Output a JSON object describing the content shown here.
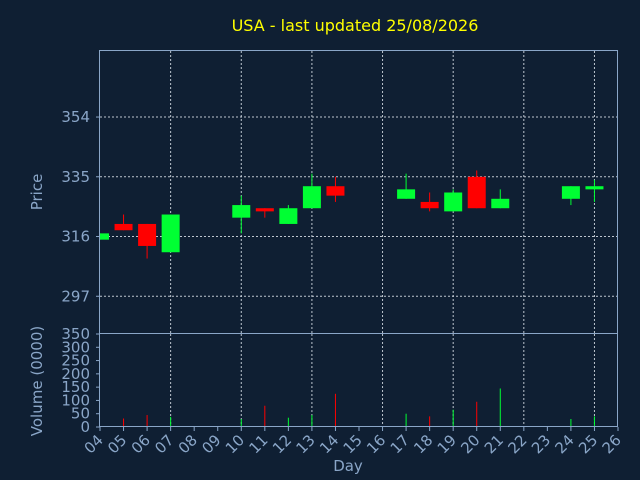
{
  "title": "USA - last updated 25/08/2026",
  "colors": {
    "background": "#0f1f33",
    "axis": "#8aa6c8",
    "title": "#ffff00",
    "up": "#00ff33",
    "down": "#ff0000"
  },
  "chart_data": [
    {
      "type": "candlestick",
      "ylabel": "Price",
      "ylim": [
        285,
        375
      ],
      "yticks": [
        297,
        316,
        335,
        354
      ],
      "grid": true,
      "candles": [
        {
          "day": "04",
          "open": 315,
          "close": 317,
          "high": 317,
          "low": 315
        },
        {
          "day": "05",
          "open": 320,
          "close": 318,
          "high": 323,
          "low": 318
        },
        {
          "day": "06",
          "open": 320,
          "close": 313,
          "high": 320,
          "low": 309
        },
        {
          "day": "07",
          "open": 311,
          "close": 323,
          "high": 323,
          "low": 311
        },
        {
          "day": "10",
          "open": 322,
          "close": 326,
          "high": 329,
          "low": 317
        },
        {
          "day": "11",
          "open": 325,
          "close": 324,
          "high": 325,
          "low": 322
        },
        {
          "day": "12",
          "open": 320,
          "close": 325,
          "high": 326,
          "low": 320
        },
        {
          "day": "13",
          "open": 325,
          "close": 332,
          "high": 336,
          "low": 325
        },
        {
          "day": "14",
          "open": 332,
          "close": 329,
          "high": 335,
          "low": 327
        },
        {
          "day": "17",
          "open": 328,
          "close": 331,
          "high": 336,
          "low": 328
        },
        {
          "day": "18",
          "open": 327,
          "close": 325,
          "high": 330,
          "low": 324
        },
        {
          "day": "19",
          "open": 324,
          "close": 330,
          "high": 331,
          "low": 324
        },
        {
          "day": "20",
          "open": 335,
          "close": 325,
          "high": 337,
          "low": 325
        },
        {
          "day": "21",
          "open": 325,
          "close": 328,
          "high": 331,
          "low": 325
        },
        {
          "day": "24",
          "open": 328,
          "close": 332,
          "high": 332,
          "low": 326
        },
        {
          "day": "25",
          "open": 331,
          "close": 332,
          "high": 334,
          "low": 327
        }
      ]
    },
    {
      "type": "bar",
      "ylabel": "Volume (0000)",
      "ylim": [
        0,
        350
      ],
      "yticks": [
        0,
        50,
        100,
        150,
        200,
        250,
        300,
        350
      ],
      "grid": false,
      "xlabel": "Day",
      "xticks": [
        "04",
        "05",
        "06",
        "07",
        "08",
        "09",
        "10",
        "11",
        "12",
        "13",
        "14",
        "15",
        "16",
        "17",
        "18",
        "19",
        "20",
        "21",
        "22",
        "23",
        "24",
        "25",
        "26"
      ],
      "volumes": [
        {
          "day": "05",
          "value": 32,
          "direction": "down"
        },
        {
          "day": "06",
          "value": 45,
          "direction": "down"
        },
        {
          "day": "07",
          "value": 38,
          "direction": "up"
        },
        {
          "day": "10",
          "value": 30,
          "direction": "up"
        },
        {
          "day": "11",
          "value": 80,
          "direction": "down"
        },
        {
          "day": "12",
          "value": 35,
          "direction": "up"
        },
        {
          "day": "13",
          "value": 45,
          "direction": "up"
        },
        {
          "day": "14",
          "value": 125,
          "direction": "down"
        },
        {
          "day": "17",
          "value": 50,
          "direction": "up"
        },
        {
          "day": "18",
          "value": 40,
          "direction": "down"
        },
        {
          "day": "19",
          "value": 65,
          "direction": "up"
        },
        {
          "day": "20",
          "value": 95,
          "direction": "down"
        },
        {
          "day": "21",
          "value": 145,
          "direction": "up"
        },
        {
          "day": "24",
          "value": 30,
          "direction": "up"
        },
        {
          "day": "25",
          "value": 40,
          "direction": "up"
        }
      ]
    }
  ]
}
